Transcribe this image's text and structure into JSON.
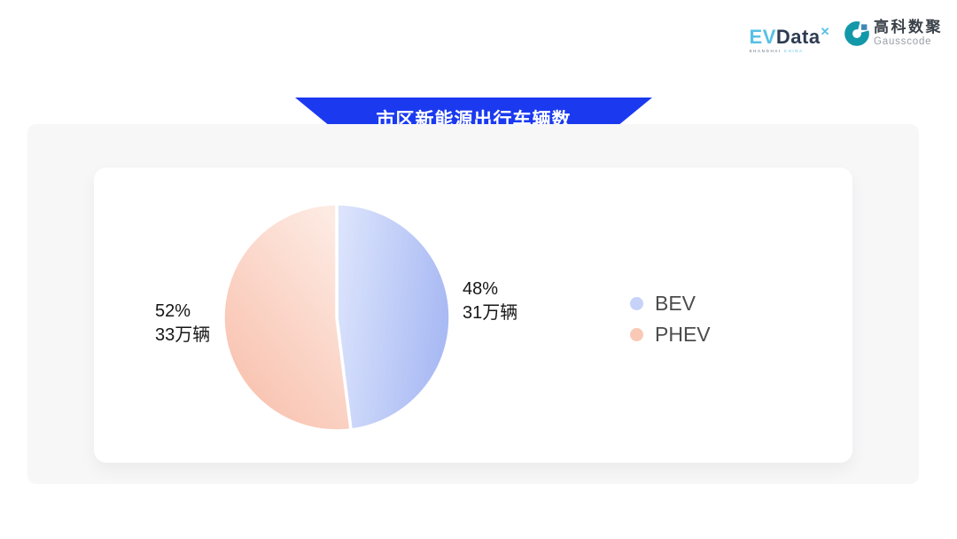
{
  "header": {
    "evdata": {
      "ev": "EV",
      "data": "Data",
      "sup": "✕",
      "sub_left": "SHANGHAI",
      "sub_right": "CHINA"
    },
    "gausscode": {
      "name_cn": "高科数聚",
      "name_en": "Gausscode"
    }
  },
  "banner": {
    "title": "市区新能源出行车辆数"
  },
  "colors": {
    "banner_blue": "#1b3af0",
    "bev_fill": "#b8c6f6",
    "phev_fill": "#f9c6b3"
  },
  "chart_data": {
    "type": "pie",
    "title": "市区新能源出行车辆数",
    "unit": "万辆",
    "start_angle_deg": 0,
    "direction": "clockwise",
    "legend_position": "right",
    "grid": false,
    "slices": [
      {
        "label": "BEV",
        "percent": 48,
        "value": 31,
        "percent_text": "48%",
        "value_text": "31万辆",
        "color_start": "#dde5fc",
        "color_end": "#a9baf4",
        "legend_color": "#c7d2f8"
      },
      {
        "label": "PHEV",
        "percent": 52,
        "value": 33,
        "percent_text": "52%",
        "value_text": "33万辆",
        "color_start": "#fdeae2",
        "color_end": "#f8bca8",
        "legend_color": "#f9c9b6"
      }
    ]
  }
}
